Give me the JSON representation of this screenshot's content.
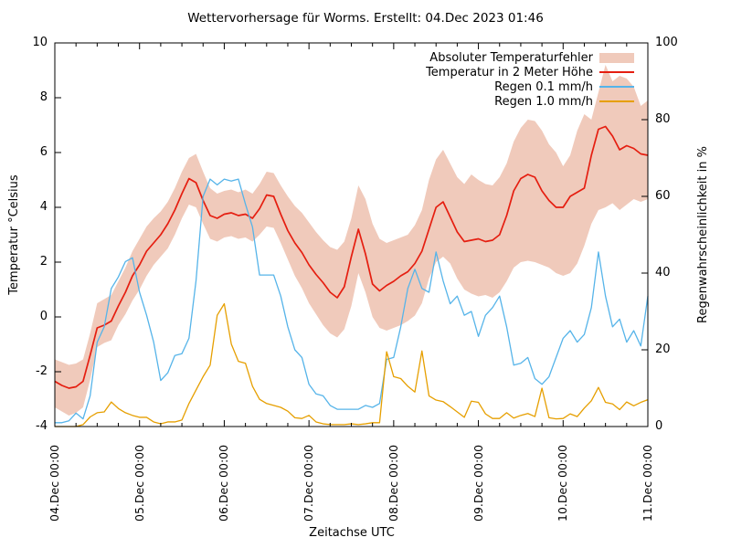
{
  "title": "Wettervorhersage für Worms. Erstellt: 04.Dec 2023 01:46",
  "axes": {
    "y_left": {
      "label": "Temperatur °Celsius",
      "min": -4,
      "max": 10,
      "ticks": [
        10,
        8,
        6,
        4,
        2,
        0,
        -2,
        -4
      ]
    },
    "y_right": {
      "label": "Regenwahrscheinlichkeit in %",
      "min": 0,
      "max": 100,
      "ticks": [
        100,
        80,
        60,
        40,
        20,
        0
      ]
    },
    "x": {
      "label": "Zeitachse UTC",
      "hours_total": 168,
      "minor_tick_hours": 6,
      "tick_labels": [
        "04.Dec 00:00",
        "05.Dec 00:00",
        "06.Dec 00:00",
        "07.Dec 00:00",
        "08.Dec 00:00",
        "09.Dec 00:00",
        "10.Dec 00:00",
        "11.Dec 00:00"
      ]
    }
  },
  "legend": [
    {
      "label": "Absoluter Temperaturfehler",
      "type": "band",
      "color": "#f0cabb"
    },
    {
      "label": "Temperatur in 2 Meter Höhe",
      "type": "line",
      "color": "#e51e10"
    },
    {
      "label": "Regen 0.1 mm/h",
      "type": "line",
      "color": "#56b4e9"
    },
    {
      "label": "Regen 1.0 mm/h",
      "type": "line",
      "color": "#e69f00"
    }
  ],
  "colors": {
    "border": "#000000",
    "text": "#000000",
    "background": "#ffffff"
  },
  "chart_data": {
    "type": "line",
    "title": "Wettervorhersage für Worms. Erstellt: 04.Dec 2023 01:46",
    "xlabel": "Zeitachse UTC",
    "ylabel": "Temperatur °Celsius",
    "y2label": "Regenwahrscheinlichkeit in %",
    "ylim": [
      -4,
      10
    ],
    "y2lim": [
      0,
      100
    ],
    "x_start_hour": 0,
    "x_hours_step": 2,
    "series": [
      {
        "name": "Absoluter Temperaturfehler",
        "kind": "band",
        "axis": "temp",
        "color": "#f0cabb",
        "upper": [
          -1.55,
          -1.65,
          -1.75,
          -1.7,
          -1.55,
          -0.6,
          0.5,
          0.65,
          0.8,
          1.3,
          1.8,
          2.4,
          2.85,
          3.3,
          3.6,
          3.85,
          4.2,
          4.7,
          5.3,
          5.8,
          5.95,
          5.3,
          4.7,
          4.5,
          4.6,
          4.65,
          4.55,
          4.65,
          4.5,
          4.85,
          5.3,
          5.25,
          4.8,
          4.4,
          4.05,
          3.8,
          3.45,
          3.1,
          2.8,
          2.55,
          2.45,
          2.75,
          3.6,
          4.8,
          4.3,
          3.4,
          2.85,
          2.7,
          2.8,
          2.9,
          3.0,
          3.35,
          3.9,
          5.0,
          5.75,
          6.1,
          5.6,
          5.1,
          4.85,
          5.2,
          5.0,
          4.85,
          4.8,
          5.1,
          5.6,
          6.4,
          6.9,
          7.2,
          7.15,
          6.8,
          6.3,
          6.0,
          5.5,
          5.9,
          6.8,
          7.4,
          7.2,
          8.2,
          9.2,
          8.6,
          8.8,
          8.7,
          8.4,
          7.7,
          7.9
        ],
        "lower": [
          -3.3,
          -3.45,
          -3.6,
          -3.5,
          -3.3,
          -2.3,
          -1.1,
          -0.95,
          -0.85,
          -0.3,
          0.1,
          0.6,
          1.0,
          1.5,
          1.9,
          2.2,
          2.5,
          3.0,
          3.6,
          4.1,
          4.0,
          3.4,
          2.85,
          2.75,
          2.9,
          2.95,
          2.85,
          2.9,
          2.75,
          3.0,
          3.3,
          3.25,
          2.7,
          2.1,
          1.5,
          1.05,
          0.5,
          0.1,
          -0.3,
          -0.6,
          -0.75,
          -0.45,
          0.4,
          1.6,
          0.9,
          0.0,
          -0.4,
          -0.5,
          -0.4,
          -0.3,
          -0.15,
          0.05,
          0.5,
          1.4,
          2.0,
          2.2,
          1.95,
          1.4,
          1.0,
          0.85,
          0.75,
          0.8,
          0.7,
          0.9,
          1.3,
          1.8,
          2.0,
          2.05,
          2.0,
          1.9,
          1.8,
          1.6,
          1.5,
          1.6,
          1.95,
          2.6,
          3.4,
          3.9,
          4.0,
          4.15,
          3.9,
          4.1,
          4.3,
          4.2,
          4.3
        ]
      },
      {
        "name": "Temperatur in 2 Meter Höhe",
        "kind": "line",
        "axis": "temp",
        "color": "#e51e10",
        "width": 1.7,
        "values": [
          -2.35,
          -2.5,
          -2.6,
          -2.55,
          -2.35,
          -1.4,
          -0.4,
          -0.3,
          -0.15,
          0.4,
          0.9,
          1.5,
          1.9,
          2.4,
          2.7,
          3.0,
          3.4,
          3.9,
          4.5,
          5.05,
          4.9,
          4.25,
          3.7,
          3.6,
          3.75,
          3.8,
          3.7,
          3.75,
          3.6,
          3.95,
          4.45,
          4.4,
          3.75,
          3.15,
          2.7,
          2.35,
          1.9,
          1.55,
          1.25,
          0.9,
          0.7,
          1.1,
          2.2,
          3.2,
          2.3,
          1.2,
          0.95,
          1.15,
          1.3,
          1.5,
          1.65,
          1.95,
          2.4,
          3.2,
          4.0,
          4.2,
          3.65,
          3.1,
          2.75,
          2.8,
          2.85,
          2.75,
          2.8,
          3.0,
          3.7,
          4.6,
          5.05,
          5.2,
          5.1,
          4.6,
          4.25,
          4.0,
          4.0,
          4.4,
          4.55,
          4.7,
          5.9,
          6.85,
          6.95,
          6.6,
          6.1,
          6.25,
          6.15,
          5.95,
          5.9
        ]
      },
      {
        "name": "Regen 0.1 mm/h",
        "kind": "line",
        "axis": "percent",
        "color": "#56b4e9",
        "width": 1.3,
        "values": [
          1,
          1,
          1.5,
          3.5,
          2,
          8,
          22,
          26,
          36,
          39,
          43,
          44,
          35,
          29,
          22,
          12,
          14,
          18.5,
          19,
          23,
          38,
          60,
          64.5,
          63,
          64.5,
          64,
          64.5,
          58,
          52,
          39.5,
          39.5,
          39.5,
          34,
          26,
          20,
          18,
          11,
          8.5,
          8,
          5.5,
          4.5,
          4.5,
          4.5,
          4.5,
          5.5,
          5,
          6,
          17.5,
          18,
          26,
          36,
          41,
          36,
          35,
          45.5,
          38,
          32,
          34,
          29,
          30,
          23.5,
          29,
          31,
          34,
          26,
          16,
          16.5,
          18,
          12.5,
          11,
          13,
          18,
          23,
          25,
          22,
          24,
          31,
          45.5,
          34,
          26,
          28,
          22,
          25,
          21,
          34
        ]
      },
      {
        "name": "Regen 1.0 mm/h",
        "kind": "line",
        "axis": "percent",
        "color": "#e69f00",
        "width": 1.3,
        "values": [
          0,
          0,
          0,
          0,
          0.5,
          2.5,
          3.6,
          3.8,
          6.4,
          4.7,
          3.6,
          2.9,
          2.4,
          2.4,
          1.2,
          0.7,
          1.2,
          1.2,
          1.7,
          6,
          9.5,
          13,
          16,
          29,
          32,
          21.5,
          17,
          16.5,
          10.5,
          7.1,
          6,
          5.5,
          5,
          4,
          2.3,
          2.1,
          2.9,
          1.2,
          0.7,
          0.5,
          0.5,
          0.5,
          0.7,
          0.5,
          0.7,
          1,
          1,
          19.5,
          13,
          12.5,
          10.5,
          9,
          19.7,
          8,
          6.9,
          6.5,
          5.2,
          3.8,
          2.4,
          6.6,
          6.3,
          3.3,
          2.1,
          2.1,
          3.6,
          2.2,
          2.9,
          3.4,
          2.6,
          10,
          2.3,
          2,
          2.1,
          3.3,
          2.6,
          4.8,
          6.7,
          10.2,
          6.3,
          5.9,
          4.4,
          6.4,
          5.4,
          6.3,
          7
        ]
      }
    ]
  }
}
